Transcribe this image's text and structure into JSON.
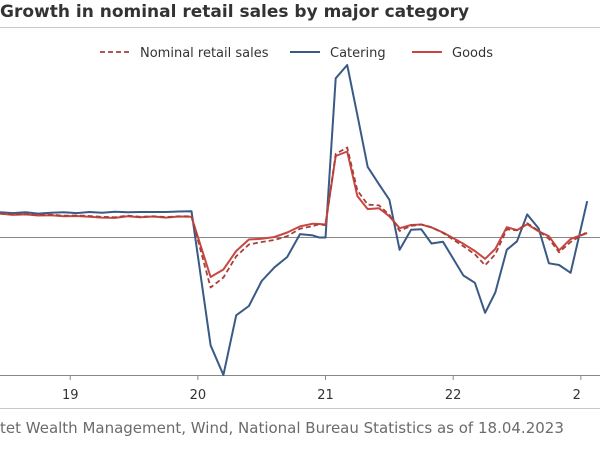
{
  "title": "Growth in nominal retail sales by major category",
  "source": "tet Wealth Management, Wind, National Bureau Statistics as of 18.04.2023",
  "chart_data": {
    "type": "line",
    "title": "Growth in nominal retail sales by major category",
    "xlabel": "",
    "ylabel": "",
    "x_tick_labels": [
      {
        "label": "19",
        "x": 2019.0
      },
      {
        "label": "20",
        "x": 2020.0
      },
      {
        "label": "21",
        "x": 2021.0
      },
      {
        "label": "22",
        "x": 2022.0
      },
      {
        "label": "2",
        "x": 2023.0
      }
    ],
    "xlim": [
      2018.45,
      2023.15
    ],
    "ylim": [
      -55,
      65
    ],
    "zero_line": true,
    "legend_position": "top-center",
    "series": [
      {
        "name": "Nominal retail sales",
        "color": "#a8403a",
        "dash": "5,3",
        "points": [
          [
            2018.45,
            9.0
          ],
          [
            2018.55,
            8.7
          ],
          [
            2018.65,
            8.8
          ],
          [
            2018.75,
            8.5
          ],
          [
            2018.85,
            8.6
          ],
          [
            2018.95,
            8.2
          ],
          [
            2019.05,
            8.3
          ],
          [
            2019.15,
            8.1
          ],
          [
            2019.25,
            7.8
          ],
          [
            2019.35,
            7.6
          ],
          [
            2019.45,
            8.2
          ],
          [
            2019.55,
            7.8
          ],
          [
            2019.65,
            8.0
          ],
          [
            2019.75,
            7.7
          ],
          [
            2019.85,
            8.0
          ],
          [
            2019.95,
            8.0
          ],
          [
            2020.1,
            -20.0
          ],
          [
            2020.2,
            -16.0
          ],
          [
            2020.3,
            -7.5
          ],
          [
            2020.4,
            -2.8
          ],
          [
            2020.5,
            -1.8
          ],
          [
            2020.6,
            -1.0
          ],
          [
            2020.7,
            0.5
          ],
          [
            2020.8,
            3.3
          ],
          [
            2020.9,
            4.3
          ],
          [
            2020.95,
            5.0
          ],
          [
            2021.0,
            4.6
          ],
          [
            2021.08,
            31.5
          ],
          [
            2021.17,
            33.9
          ],
          [
            2021.25,
            17.7
          ],
          [
            2021.33,
            12.4
          ],
          [
            2021.42,
            12.1
          ],
          [
            2021.5,
            8.5
          ],
          [
            2021.58,
            2.5
          ],
          [
            2021.67,
            4.4
          ],
          [
            2021.75,
            4.9
          ],
          [
            2021.83,
            3.9
          ],
          [
            2021.92,
            1.7
          ],
          [
            2022.08,
            -3.5
          ],
          [
            2022.17,
            -6.7
          ],
          [
            2022.25,
            -11.1
          ],
          [
            2022.33,
            -6.7
          ],
          [
            2022.42,
            3.1
          ],
          [
            2022.5,
            2.7
          ],
          [
            2022.58,
            5.4
          ],
          [
            2022.67,
            2.5
          ],
          [
            2022.75,
            -0.5
          ],
          [
            2022.83,
            -5.9
          ],
          [
            2022.92,
            -1.8
          ],
          [
            2023.05,
            2.1
          ]
        ]
      },
      {
        "name": "Catering",
        "color": "#3a5a86",
        "dash": "",
        "points": [
          [
            2018.45,
            9.5
          ],
          [
            2018.55,
            9.2
          ],
          [
            2018.65,
            9.5
          ],
          [
            2018.75,
            9.0
          ],
          [
            2018.85,
            9.3
          ],
          [
            2018.95,
            9.5
          ],
          [
            2019.05,
            9.2
          ],
          [
            2019.15,
            9.6
          ],
          [
            2019.25,
            9.3
          ],
          [
            2019.35,
            9.7
          ],
          [
            2019.45,
            9.5
          ],
          [
            2019.55,
            9.6
          ],
          [
            2019.65,
            9.6
          ],
          [
            2019.75,
            9.6
          ],
          [
            2019.85,
            9.8
          ],
          [
            2019.95,
            9.9
          ],
          [
            2020.1,
            -43.1
          ],
          [
            2020.2,
            -55.0
          ],
          [
            2020.3,
            -31.1
          ],
          [
            2020.4,
            -27.4
          ],
          [
            2020.5,
            -17.4
          ],
          [
            2020.6,
            -11.9
          ],
          [
            2020.7,
            -7.8
          ],
          [
            2020.8,
            1.3
          ],
          [
            2020.9,
            0.8
          ],
          [
            2020.95,
            0.0
          ],
          [
            2021.0,
            0.0
          ],
          [
            2021.08,
            60.0
          ],
          [
            2021.17,
            65.0
          ],
          [
            2021.25,
            46.1
          ],
          [
            2021.33,
            26.6
          ],
          [
            2021.42,
            20.0
          ],
          [
            2021.5,
            14.2
          ],
          [
            2021.58,
            -4.9
          ],
          [
            2021.67,
            2.9
          ],
          [
            2021.75,
            3.1
          ],
          [
            2021.83,
            -2.4
          ],
          [
            2021.92,
            -1.7
          ],
          [
            2022.08,
            -15.2
          ],
          [
            2022.17,
            -18.1
          ],
          [
            2022.25,
            -30.1
          ],
          [
            2022.33,
            -22.0
          ],
          [
            2022.42,
            -4.9
          ],
          [
            2022.5,
            -1.5
          ],
          [
            2022.58,
            8.7
          ],
          [
            2022.67,
            3.4
          ],
          [
            2022.75,
            -10.3
          ],
          [
            2022.83,
            -11.0
          ],
          [
            2022.92,
            -14.1
          ],
          [
            2023.05,
            13.7
          ]
        ]
      },
      {
        "name": "Goods",
        "color": "#c94743",
        "dash": "",
        "points": [
          [
            2018.45,
            9.0
          ],
          [
            2018.55,
            8.5
          ],
          [
            2018.65,
            8.7
          ],
          [
            2018.75,
            8.3
          ],
          [
            2018.85,
            8.4
          ],
          [
            2018.95,
            8.0
          ],
          [
            2019.05,
            8.1
          ],
          [
            2019.15,
            7.8
          ],
          [
            2019.25,
            7.5
          ],
          [
            2019.35,
            7.4
          ],
          [
            2019.45,
            8.0
          ],
          [
            2019.55,
            7.6
          ],
          [
            2019.65,
            7.9
          ],
          [
            2019.75,
            7.5
          ],
          [
            2019.85,
            7.9
          ],
          [
            2019.95,
            7.8
          ],
          [
            2020.1,
            -15.8
          ],
          [
            2020.2,
            -12.8
          ],
          [
            2020.3,
            -5.4
          ],
          [
            2020.4,
            -0.8
          ],
          [
            2020.5,
            -0.5
          ],
          [
            2020.6,
            0.2
          ],
          [
            2020.7,
            1.9
          ],
          [
            2020.8,
            4.2
          ],
          [
            2020.9,
            5.2
          ],
          [
            2020.95,
            5.1
          ],
          [
            2021.0,
            4.9
          ],
          [
            2021.08,
            30.7
          ],
          [
            2021.17,
            32.4
          ],
          [
            2021.25,
            15.6
          ],
          [
            2021.33,
            10.7
          ],
          [
            2021.42,
            11.0
          ],
          [
            2021.5,
            8.0
          ],
          [
            2021.58,
            3.5
          ],
          [
            2021.67,
            4.7
          ],
          [
            2021.75,
            4.9
          ],
          [
            2021.83,
            3.8
          ],
          [
            2021.92,
            1.9
          ],
          [
            2022.08,
            -2.5
          ],
          [
            2022.17,
            -5.4
          ],
          [
            2022.25,
            -8.5
          ],
          [
            2022.33,
            -4.6
          ],
          [
            2022.42,
            3.9
          ],
          [
            2022.5,
            2.8
          ],
          [
            2022.58,
            5.0
          ],
          [
            2022.67,
            2.3
          ],
          [
            2022.75,
            0.5
          ],
          [
            2022.83,
            -5.1
          ],
          [
            2022.92,
            -0.6
          ],
          [
            2023.05,
            1.7
          ]
        ]
      }
    ]
  }
}
